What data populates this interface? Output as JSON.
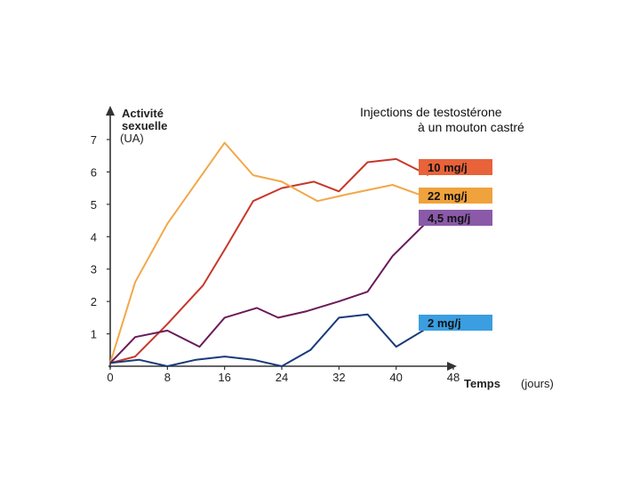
{
  "chart_data": {
    "type": "line",
    "title_line1": "Injections de testostérone",
    "title_line2": "à un mouton castré",
    "ylabel_line1": "Activité",
    "ylabel_line2": "sexuelle",
    "ylabel_unit": "(UA)",
    "xlabel_main": "Temps",
    "xlabel_unit": "(jours)",
    "xlim": [
      0,
      52
    ],
    "ylim": [
      0,
      7.4
    ],
    "x_ticks": [
      "0",
      "8",
      "16",
      "24",
      "32",
      "40",
      "48"
    ],
    "y_ticks": [
      "1",
      "2",
      "3",
      "4",
      "5",
      "6",
      "7"
    ],
    "grid": false,
    "series": [
      {
        "name": "10 mg/j",
        "color": "#c8372a",
        "legend_bg": "#e8623a",
        "x": [
          0,
          3.5,
          8,
          13,
          16,
          20,
          24,
          28.5,
          32,
          36,
          40,
          44.5
        ],
        "y": [
          0.1,
          0.3,
          1.3,
          2.5,
          3.6,
          5.1,
          5.5,
          5.7,
          5.4,
          6.3,
          6.4,
          5.9
        ]
      },
      {
        "name": "22 mg/j",
        "color": "#f2a848",
        "legend_bg": "#f0a23c",
        "x": [
          0,
          3.5,
          8,
          16,
          20,
          24,
          29,
          33,
          39.5,
          44.5
        ],
        "y": [
          0.1,
          2.6,
          4.4,
          6.9,
          5.9,
          5.7,
          5.1,
          5.3,
          5.6,
          5.2
        ]
      },
      {
        "name": "4,5 mg/j",
        "color": "#6a1a5a",
        "legend_bg": "#8a5aa8",
        "x": [
          0,
          3.5,
          8,
          12.5,
          16,
          20.5,
          23.5,
          27.5,
          32,
          36,
          39.5,
          44.5
        ],
        "y": [
          0.1,
          0.9,
          1.1,
          0.6,
          1.5,
          1.8,
          1.5,
          1.7,
          2.0,
          2.3,
          3.4,
          4.5
        ]
      },
      {
        "name": "2 mg/j",
        "color": "#1a3a7a",
        "legend_bg": "#3a9ee0",
        "x": [
          0,
          4,
          8,
          12,
          16,
          20,
          24,
          28,
          32,
          36,
          40,
          44.5
        ],
        "y": [
          0.1,
          0.2,
          0.0,
          0.2,
          0.3,
          0.2,
          0.0,
          0.5,
          1.5,
          1.6,
          0.6,
          1.2
        ]
      }
    ]
  }
}
